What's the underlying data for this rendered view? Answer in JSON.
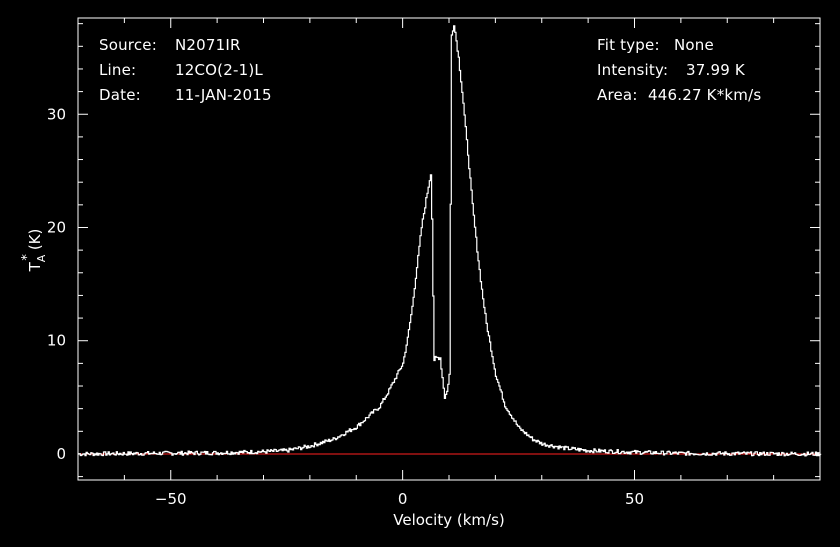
{
  "header": {
    "source_label": "Source:",
    "source_value": "N2071IR",
    "line_label": "Line:",
    "line_value": "12CO(2-1)L",
    "date_label": "Date:",
    "date_value": "11-JAN-2015",
    "fit_label": "Fit type:",
    "fit_value": "None",
    "intensity_label": "Intensity:",
    "intensity_value": "37.99 K",
    "area_label": "Area:",
    "area_value": "446.27 K*km/s"
  },
  "chart_data": {
    "type": "line",
    "xlabel": "Velocity (km/s)",
    "ylabel_main": "T",
    "ylabel_sub": "A",
    "ylabel_sup": "*",
    "ylabel_unit": "(K)",
    "xlim": [
      -70,
      90
    ],
    "ylim": [
      -2.3,
      38.5
    ],
    "x_ticks": [
      -50,
      0,
      50
    ],
    "x_tick_labels": [
      "−50",
      "0",
      "50"
    ],
    "y_ticks": [
      0,
      10,
      20,
      30
    ],
    "y_tick_labels": [
      "0",
      "10",
      "20",
      "30"
    ],
    "baseline": 0,
    "colors": {
      "spectrum": "#ffffff",
      "baseline": "#ff2020",
      "frame": "#ffffff"
    },
    "series": [
      {
        "x": [
          -70,
          -40,
          -30,
          -25,
          -20,
          -15,
          -10,
          -5,
          -3,
          -1,
          0,
          1,
          2,
          3,
          4,
          5,
          6,
          6.3,
          6.7,
          7,
          8,
          9,
          9.5,
          10,
          10.5,
          11,
          12,
          13,
          14,
          15,
          16,
          17,
          18,
          20,
          22,
          25,
          28,
          30,
          35,
          40,
          50,
          60,
          90
        ],
        "y": [
          0,
          0.1,
          0.2,
          0.3,
          0.7,
          1.3,
          2.4,
          4.2,
          5.6,
          7.2,
          8.0,
          10.2,
          13.0,
          16.5,
          20.0,
          22.5,
          24.8,
          20.0,
          8.0,
          8.5,
          8.5,
          5.0,
          5.5,
          7.0,
          37.0,
          37.99,
          35.0,
          31.0,
          26.5,
          22.0,
          18.0,
          14.5,
          11.5,
          7.0,
          4.3,
          2.3,
          1.3,
          0.9,
          0.5,
          0.3,
          0.15,
          0.05,
          0
        ]
      }
    ]
  }
}
